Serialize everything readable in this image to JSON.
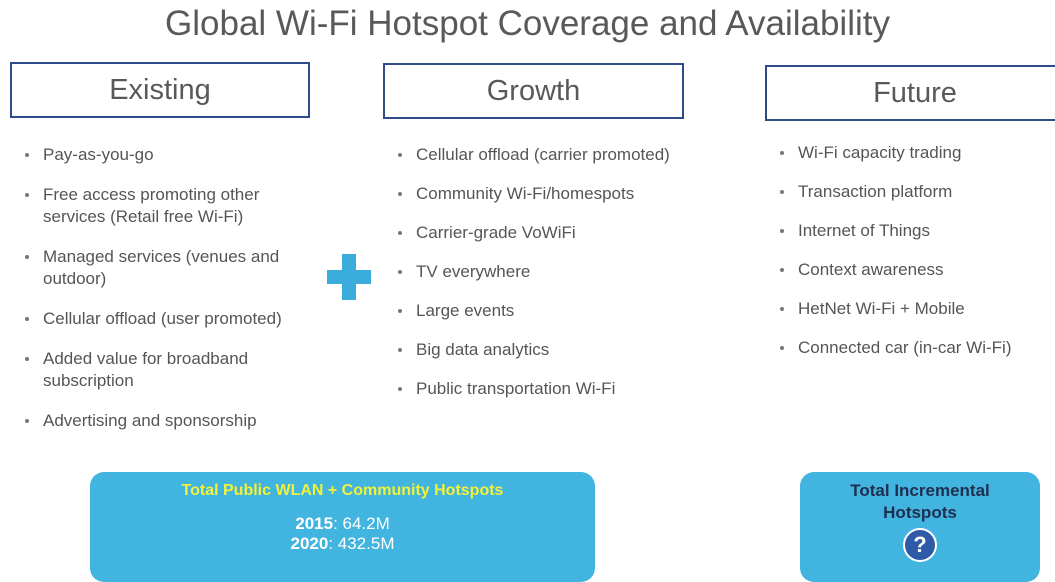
{
  "title": "Global Wi-Fi Hotspot Coverage and Availability",
  "columns": [
    {
      "header": "Existing",
      "items": [
        "Pay-as-you-go",
        "Free access promoting other services (Retail free Wi-Fi)",
        "Managed services (venues and outdoor)",
        "Cellular offload (user promoted)",
        "Added value for broadband subscription",
        "Advertising and sponsorship"
      ]
    },
    {
      "header": "Growth",
      "items": [
        "Cellular offload (carrier promoted)",
        "Community Wi-Fi/homespots",
        "Carrier-grade VoWiFi",
        "TV everywhere",
        "Large events",
        "Big data analytics",
        "Public transportation Wi-Fi"
      ]
    },
    {
      "header": "Future",
      "items": [
        "Wi-Fi capacity trading",
        "Transaction platform",
        "Internet of Things",
        "Context awareness",
        "HetNet Wi-Fi + Mobile",
        "Connected car (in-car Wi-Fi)"
      ]
    }
  ],
  "totals": {
    "title": "Total Public WLAN + Community Hotspots",
    "lines": [
      {
        "year": "2015",
        "rest": ": 64.2M"
      },
      {
        "year": "2020",
        "rest": ": 432.5M"
      }
    ]
  },
  "incremental": {
    "title": "Total Incremental Hotspots",
    "icon": "?"
  }
}
